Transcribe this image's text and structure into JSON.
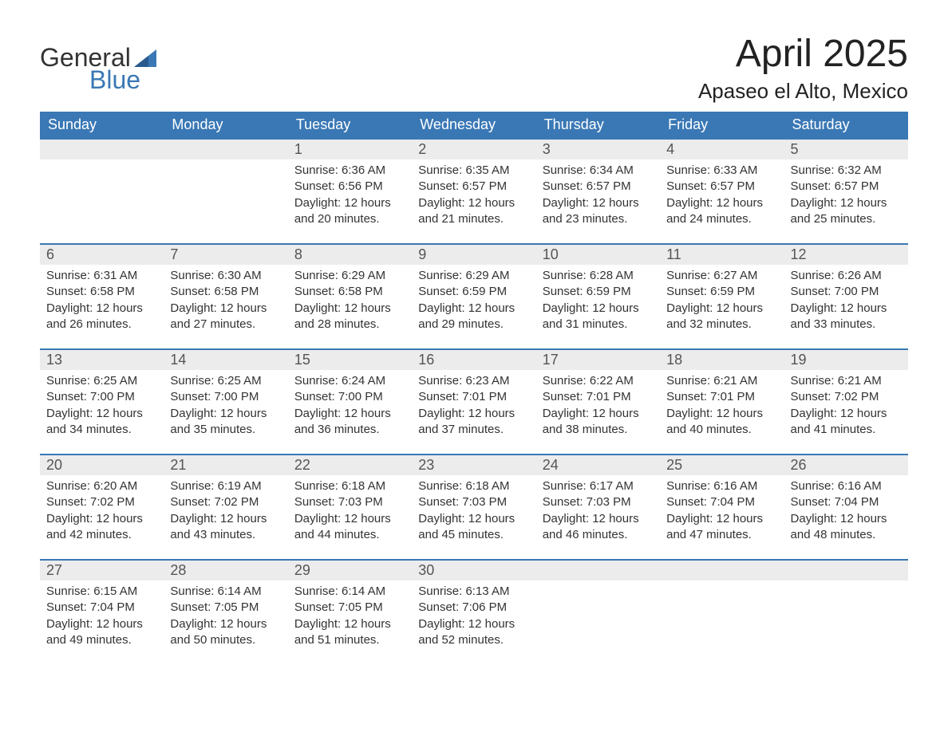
{
  "logo": {
    "text1": "General",
    "text2": "Blue",
    "flag_color": "#3a78b5"
  },
  "title": "April 2025",
  "location": "Apaseo el Alto, Mexico",
  "colors": {
    "header_bg": "#3a78b5",
    "header_fg": "#ffffff",
    "daynum_bg": "#ececec",
    "daynum_border": "#3a78b5",
    "body_bg": "#ffffff",
    "text": "#333333"
  },
  "weekdays": [
    "Sunday",
    "Monday",
    "Tuesday",
    "Wednesday",
    "Thursday",
    "Friday",
    "Saturday"
  ],
  "first_weekday_index": 2,
  "days": [
    {
      "n": 1,
      "sunrise": "Sunrise: 6:36 AM",
      "sunset": "Sunset: 6:56 PM",
      "day1": "Daylight: 12 hours",
      "day2": "and 20 minutes."
    },
    {
      "n": 2,
      "sunrise": "Sunrise: 6:35 AM",
      "sunset": "Sunset: 6:57 PM",
      "day1": "Daylight: 12 hours",
      "day2": "and 21 minutes."
    },
    {
      "n": 3,
      "sunrise": "Sunrise: 6:34 AM",
      "sunset": "Sunset: 6:57 PM",
      "day1": "Daylight: 12 hours",
      "day2": "and 23 minutes."
    },
    {
      "n": 4,
      "sunrise": "Sunrise: 6:33 AM",
      "sunset": "Sunset: 6:57 PM",
      "day1": "Daylight: 12 hours",
      "day2": "and 24 minutes."
    },
    {
      "n": 5,
      "sunrise": "Sunrise: 6:32 AM",
      "sunset": "Sunset: 6:57 PM",
      "day1": "Daylight: 12 hours",
      "day2": "and 25 minutes."
    },
    {
      "n": 6,
      "sunrise": "Sunrise: 6:31 AM",
      "sunset": "Sunset: 6:58 PM",
      "day1": "Daylight: 12 hours",
      "day2": "and 26 minutes."
    },
    {
      "n": 7,
      "sunrise": "Sunrise: 6:30 AM",
      "sunset": "Sunset: 6:58 PM",
      "day1": "Daylight: 12 hours",
      "day2": "and 27 minutes."
    },
    {
      "n": 8,
      "sunrise": "Sunrise: 6:29 AM",
      "sunset": "Sunset: 6:58 PM",
      "day1": "Daylight: 12 hours",
      "day2": "and 28 minutes."
    },
    {
      "n": 9,
      "sunrise": "Sunrise: 6:29 AM",
      "sunset": "Sunset: 6:59 PM",
      "day1": "Daylight: 12 hours",
      "day2": "and 29 minutes."
    },
    {
      "n": 10,
      "sunrise": "Sunrise: 6:28 AM",
      "sunset": "Sunset: 6:59 PM",
      "day1": "Daylight: 12 hours",
      "day2": "and 31 minutes."
    },
    {
      "n": 11,
      "sunrise": "Sunrise: 6:27 AM",
      "sunset": "Sunset: 6:59 PM",
      "day1": "Daylight: 12 hours",
      "day2": "and 32 minutes."
    },
    {
      "n": 12,
      "sunrise": "Sunrise: 6:26 AM",
      "sunset": "Sunset: 7:00 PM",
      "day1": "Daylight: 12 hours",
      "day2": "and 33 minutes."
    },
    {
      "n": 13,
      "sunrise": "Sunrise: 6:25 AM",
      "sunset": "Sunset: 7:00 PM",
      "day1": "Daylight: 12 hours",
      "day2": "and 34 minutes."
    },
    {
      "n": 14,
      "sunrise": "Sunrise: 6:25 AM",
      "sunset": "Sunset: 7:00 PM",
      "day1": "Daylight: 12 hours",
      "day2": "and 35 minutes."
    },
    {
      "n": 15,
      "sunrise": "Sunrise: 6:24 AM",
      "sunset": "Sunset: 7:00 PM",
      "day1": "Daylight: 12 hours",
      "day2": "and 36 minutes."
    },
    {
      "n": 16,
      "sunrise": "Sunrise: 6:23 AM",
      "sunset": "Sunset: 7:01 PM",
      "day1": "Daylight: 12 hours",
      "day2": "and 37 minutes."
    },
    {
      "n": 17,
      "sunrise": "Sunrise: 6:22 AM",
      "sunset": "Sunset: 7:01 PM",
      "day1": "Daylight: 12 hours",
      "day2": "and 38 minutes."
    },
    {
      "n": 18,
      "sunrise": "Sunrise: 6:21 AM",
      "sunset": "Sunset: 7:01 PM",
      "day1": "Daylight: 12 hours",
      "day2": "and 40 minutes."
    },
    {
      "n": 19,
      "sunrise": "Sunrise: 6:21 AM",
      "sunset": "Sunset: 7:02 PM",
      "day1": "Daylight: 12 hours",
      "day2": "and 41 minutes."
    },
    {
      "n": 20,
      "sunrise": "Sunrise: 6:20 AM",
      "sunset": "Sunset: 7:02 PM",
      "day1": "Daylight: 12 hours",
      "day2": "and 42 minutes."
    },
    {
      "n": 21,
      "sunrise": "Sunrise: 6:19 AM",
      "sunset": "Sunset: 7:02 PM",
      "day1": "Daylight: 12 hours",
      "day2": "and 43 minutes."
    },
    {
      "n": 22,
      "sunrise": "Sunrise: 6:18 AM",
      "sunset": "Sunset: 7:03 PM",
      "day1": "Daylight: 12 hours",
      "day2": "and 44 minutes."
    },
    {
      "n": 23,
      "sunrise": "Sunrise: 6:18 AM",
      "sunset": "Sunset: 7:03 PM",
      "day1": "Daylight: 12 hours",
      "day2": "and 45 minutes."
    },
    {
      "n": 24,
      "sunrise": "Sunrise: 6:17 AM",
      "sunset": "Sunset: 7:03 PM",
      "day1": "Daylight: 12 hours",
      "day2": "and 46 minutes."
    },
    {
      "n": 25,
      "sunrise": "Sunrise: 6:16 AM",
      "sunset": "Sunset: 7:04 PM",
      "day1": "Daylight: 12 hours",
      "day2": "and 47 minutes."
    },
    {
      "n": 26,
      "sunrise": "Sunrise: 6:16 AM",
      "sunset": "Sunset: 7:04 PM",
      "day1": "Daylight: 12 hours",
      "day2": "and 48 minutes."
    },
    {
      "n": 27,
      "sunrise": "Sunrise: 6:15 AM",
      "sunset": "Sunset: 7:04 PM",
      "day1": "Daylight: 12 hours",
      "day2": "and 49 minutes."
    },
    {
      "n": 28,
      "sunrise": "Sunrise: 6:14 AM",
      "sunset": "Sunset: 7:05 PM",
      "day1": "Daylight: 12 hours",
      "day2": "and 50 minutes."
    },
    {
      "n": 29,
      "sunrise": "Sunrise: 6:14 AM",
      "sunset": "Sunset: 7:05 PM",
      "day1": "Daylight: 12 hours",
      "day2": "and 51 minutes."
    },
    {
      "n": 30,
      "sunrise": "Sunrise: 6:13 AM",
      "sunset": "Sunset: 7:06 PM",
      "day1": "Daylight: 12 hours",
      "day2": "and 52 minutes."
    }
  ]
}
